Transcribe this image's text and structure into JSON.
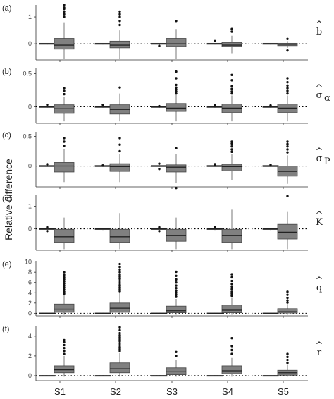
{
  "chart_data": {
    "type": "boxplot",
    "ylabel": "Relative difference",
    "categories": [
      "S1",
      "S2",
      "S3",
      "S4",
      "S5"
    ],
    "reference_line": 0,
    "panels": [
      {
        "label": "(a)",
        "symbol_base": "b",
        "symbol_sub": "",
        "ylim": [
          -0.6,
          1.5
        ],
        "ticks": [
          0,
          1
        ],
        "groups": [
          {
            "cat": "S1",
            "narrow": {
              "q1": -0.02,
              "median": 0,
              "q3": 0.02,
              "lo": -0.03,
              "hi": 0.03,
              "outliers": []
            },
            "wide": {
              "q1": -0.2,
              "median": -0.05,
              "q3": 0.2,
              "lo": -0.55,
              "hi": 0.8,
              "outliers": [
                1.0,
                1.1,
                1.2,
                1.3,
                1.35,
                1.45
              ]
            }
          },
          {
            "cat": "S2",
            "narrow": {
              "q1": -0.02,
              "median": 0,
              "q3": 0.02,
              "lo": -0.03,
              "hi": 0.03,
              "outliers": []
            },
            "wide": {
              "q1": -0.15,
              "median": -0.05,
              "q3": 0.1,
              "lo": -0.55,
              "hi": 0.5,
              "outliers": [
                0.7,
                0.85,
                1.0,
                1.1,
                1.2
              ]
            }
          },
          {
            "cat": "S3",
            "narrow": {
              "q1": -0.02,
              "median": 0,
              "q3": 0.02,
              "lo": -0.03,
              "hi": 0.03,
              "outliers": [
                -0.08
              ]
            },
            "wide": {
              "q1": -0.1,
              "median": 0.0,
              "q3": 0.2,
              "lo": -0.55,
              "hi": 0.55,
              "outliers": [
                0.85
              ]
            }
          },
          {
            "cat": "S4",
            "narrow": {
              "q1": -0.02,
              "median": 0,
              "q3": 0.02,
              "lo": -0.03,
              "hi": 0.03,
              "outliers": [
                0.1
              ]
            },
            "wide": {
              "q1": -0.1,
              "median": -0.05,
              "q3": 0.05,
              "lo": -0.35,
              "hi": 0.3,
              "outliers": [
                0.45,
                0.55
              ]
            }
          },
          {
            "cat": "S5",
            "narrow": {
              "q1": -0.02,
              "median": 0,
              "q3": 0.02,
              "lo": -0.03,
              "hi": 0.03,
              "outliers": []
            },
            "wide": {
              "q1": -0.07,
              "median": -0.02,
              "q3": 0.02,
              "lo": -0.15,
              "hi": 0.1,
              "outliers": [
                0.18,
                -0.25
              ]
            }
          }
        ]
      },
      {
        "label": "(b)",
        "symbol_base": "σ",
        "symbol_sub": "α",
        "ylim": [
          -0.25,
          0.6
        ],
        "ticks": [
          0.0,
          0.5
        ],
        "groups": [
          {
            "cat": "S1",
            "narrow": {
              "q1": -0.01,
              "median": 0,
              "q3": 0.01,
              "lo": -0.015,
              "hi": 0.015,
              "outliers": [
                0.03
              ]
            },
            "wide": {
              "q1": -0.1,
              "median": -0.03,
              "q3": 0.03,
              "lo": -0.22,
              "hi": 0.15,
              "outliers": [
                0.19,
                0.24,
                0.28
              ]
            }
          },
          {
            "cat": "S2",
            "narrow": {
              "q1": -0.01,
              "median": 0,
              "q3": 0.01,
              "lo": -0.015,
              "hi": 0.015,
              "outliers": [
                0.03
              ]
            },
            "wide": {
              "q1": -0.11,
              "median": -0.04,
              "q3": 0.03,
              "lo": -0.22,
              "hi": 0.2,
              "outliers": [
                0.29
              ]
            }
          },
          {
            "cat": "S3",
            "narrow": {
              "q1": -0.01,
              "median": 0,
              "q3": 0.01,
              "lo": -0.015,
              "hi": 0.015,
              "outliers": [
                0.01
              ]
            },
            "wide": {
              "q1": -0.07,
              "median": -0.02,
              "q3": 0.05,
              "lo": -0.22,
              "hi": 0.18,
              "outliers": [
                0.2,
                0.23,
                0.26,
                0.29,
                0.33,
                0.43,
                0.53
              ]
            }
          },
          {
            "cat": "S4",
            "narrow": {
              "q1": -0.01,
              "median": 0,
              "q3": 0.01,
              "lo": -0.015,
              "hi": 0.015,
              "outliers": [
                0.02
              ]
            },
            "wide": {
              "q1": -0.09,
              "median": -0.02,
              "q3": 0.04,
              "lo": -0.22,
              "hi": 0.17,
              "outliers": [
                0.2,
                0.23,
                0.27,
                0.31,
                0.4,
                0.48
              ]
            }
          },
          {
            "cat": "S5",
            "narrow": {
              "q1": -0.01,
              "median": 0,
              "q3": 0.01,
              "lo": -0.015,
              "hi": 0.015,
              "outliers": [
                0.02
              ]
            },
            "wide": {
              "q1": -0.09,
              "median": -0.02,
              "q3": 0.04,
              "lo": -0.22,
              "hi": 0.17,
              "outliers": [
                0.2,
                0.24,
                0.28,
                0.32,
                0.37,
                0.43
              ]
            }
          }
        ]
      },
      {
        "label": "(c)",
        "symbol_base": "σ",
        "symbol_sub": "P",
        "ylim": [
          -0.35,
          0.6
        ],
        "ticks": [
          0.0,
          0.5
        ],
        "groups": [
          {
            "cat": "S1",
            "narrow": {
              "q1": -0.01,
              "median": 0,
              "q3": 0.01,
              "lo": -0.015,
              "hi": 0.015,
              "outliers": [
                0.03
              ]
            },
            "wide": {
              "q1": -0.1,
              "median": 0.0,
              "q3": 0.06,
              "lo": -0.27,
              "hi": 0.28,
              "outliers": [
                0.34,
                0.41,
                0.47
              ]
            }
          },
          {
            "cat": "S2",
            "narrow": {
              "q1": -0.01,
              "median": 0,
              "q3": 0.01,
              "lo": -0.015,
              "hi": 0.015,
              "outliers": [
                0.01
              ]
            },
            "wide": {
              "q1": -0.09,
              "median": -0.01,
              "q3": 0.04,
              "lo": -0.27,
              "hi": 0.2,
              "outliers": [
                0.25,
                0.36,
                0.47
              ]
            }
          },
          {
            "cat": "S3",
            "narrow": {
              "q1": -0.01,
              "median": 0,
              "q3": 0.01,
              "lo": -0.015,
              "hi": 0.015,
              "outliers": [
                0.04,
                -0.05
              ]
            },
            "wide": {
              "q1": -0.1,
              "median": -0.02,
              "q3": 0.02,
              "lo": -0.28,
              "hi": 0.2,
              "outliers": [
                0.3,
                -0.37
              ]
            }
          },
          {
            "cat": "S4",
            "narrow": {
              "q1": -0.01,
              "median": 0,
              "q3": 0.01,
              "lo": -0.015,
              "hi": 0.015,
              "outliers": [
                0.02,
                0.03
              ]
            },
            "wide": {
              "q1": -0.08,
              "median": -0.01,
              "q3": 0.03,
              "lo": -0.24,
              "hi": 0.2,
              "outliers": [
                0.24,
                0.28,
                0.33,
                0.38,
                0.41
              ]
            }
          },
          {
            "cat": "S5",
            "narrow": {
              "q1": -0.01,
              "median": 0,
              "q3": 0.01,
              "lo": -0.015,
              "hi": 0.015,
              "outliers": [
                0.02
              ]
            },
            "wide": {
              "q1": -0.17,
              "median": -0.09,
              "q3": 0.0,
              "lo": -0.3,
              "hi": 0.18,
              "outliers": [
                0.23,
                0.28,
                0.33,
                0.37,
                0.41
              ]
            }
          }
        ]
      },
      {
        "label": "(d)",
        "symbol_base": "K",
        "symbol_sub": "",
        "ylim": [
          -0.95,
          1.55
        ],
        "ticks": [
          0,
          1
        ],
        "groups": [
          {
            "cat": "S1",
            "narrow": {
              "q1": -0.03,
              "median": 0,
              "q3": 0.03,
              "lo": -0.05,
              "hi": 0.05,
              "outliers": [
                0.07,
                -0.1
              ]
            },
            "wide": {
              "q1": -0.6,
              "median": -0.35,
              "q3": -0.02,
              "lo": -0.9,
              "hi": 0.5,
              "outliers": []
            }
          },
          {
            "cat": "S2",
            "narrow": {
              "q1": -0.03,
              "median": 0,
              "q3": 0.03,
              "lo": -0.05,
              "hi": 0.05,
              "outliers": []
            },
            "wide": {
              "q1": -0.6,
              "median": -0.35,
              "q3": -0.02,
              "lo": -0.9,
              "hi": 0.7,
              "outliers": []
            }
          },
          {
            "cat": "S3",
            "narrow": {
              "q1": -0.03,
              "median": 0,
              "q3": 0.03,
              "lo": -0.05,
              "hi": 0.05,
              "outliers": [
                0.07,
                -0.1
              ]
            },
            "wide": {
              "q1": -0.55,
              "median": -0.3,
              "q3": -0.02,
              "lo": -0.9,
              "hi": 0.5,
              "outliers": []
            }
          },
          {
            "cat": "S4",
            "narrow": {
              "q1": -0.03,
              "median": 0,
              "q3": 0.03,
              "lo": -0.05,
              "hi": 0.05,
              "outliers": [
                0.07
              ]
            },
            "wide": {
              "q1": -0.6,
              "median": -0.3,
              "q3": -0.02,
              "lo": -0.9,
              "hi": 0.85,
              "outliers": []
            }
          },
          {
            "cat": "S5",
            "narrow": {
              "q1": -0.03,
              "median": 0,
              "q3": 0.03,
              "lo": -0.05,
              "hi": 0.05,
              "outliers": []
            },
            "wide": {
              "q1": -0.45,
              "median": -0.15,
              "q3": 0.2,
              "lo": -0.9,
              "hi": 0.75,
              "outliers": [
                1.45
              ]
            }
          }
        ]
      },
      {
        "label": "(e)",
        "symbol_base": "q",
        "symbol_sub": "",
        "ylim": [
          -0.5,
          10.5
        ],
        "ticks": [
          0,
          2,
          4,
          6,
          8,
          10
        ],
        "groups": [
          {
            "cat": "S1",
            "narrow": {
              "q1": -0.05,
              "median": 0,
              "q3": 0.05,
              "lo": -0.1,
              "hi": 0.1,
              "outliers": []
            },
            "wide": {
              "q1": 0.2,
              "median": 0.8,
              "q3": 1.8,
              "lo": -0.3,
              "hi": 3.5,
              "outliers": [
                3.8,
                4.2,
                4.6,
                5.0,
                5.4,
                5.8,
                6.2,
                6.6,
                7.0,
                7.5,
                8.0
              ]
            }
          },
          {
            "cat": "S2",
            "narrow": {
              "q1": -0.05,
              "median": 0,
              "q3": 0.05,
              "lo": -0.1,
              "hi": 0.1,
              "outliers": []
            },
            "wide": {
              "q1": 0.2,
              "median": 1.0,
              "q3": 2.0,
              "lo": -0.3,
              "hi": 4.0,
              "outliers": [
                4.3,
                4.7,
                5.1,
                5.5,
                5.9,
                6.3,
                6.7,
                7.1,
                7.5,
                8.0,
                8.5,
                9.0,
                9.6
              ]
            }
          },
          {
            "cat": "S3",
            "narrow": {
              "q1": -0.05,
              "median": 0,
              "q3": 0.05,
              "lo": -0.1,
              "hi": 0.1,
              "outliers": []
            },
            "wide": {
              "q1": 0.1,
              "median": 0.5,
              "q3": 1.4,
              "lo": -0.3,
              "hi": 2.8,
              "outliers": [
                3.2,
                3.6,
                4.0,
                4.4,
                4.9,
                5.4,
                6.0,
                6.6,
                7.3,
                8.1
              ]
            }
          },
          {
            "cat": "S4",
            "narrow": {
              "q1": -0.05,
              "median": 0,
              "q3": 0.05,
              "lo": -0.1,
              "hi": 0.1,
              "outliers": []
            },
            "wide": {
              "q1": 0.1,
              "median": 0.6,
              "q3": 1.6,
              "lo": -0.3,
              "hi": 3.0,
              "outliers": [
                3.4,
                3.8,
                4.2,
                4.7,
                5.2,
                5.7,
                6.3,
                7.0,
                7.6
              ]
            }
          },
          {
            "cat": "S5",
            "narrow": {
              "q1": -0.05,
              "median": 0,
              "q3": 0.05,
              "lo": -0.1,
              "hi": 0.1,
              "outliers": []
            },
            "wide": {
              "q1": 0.05,
              "median": 0.3,
              "q3": 0.9,
              "lo": -0.3,
              "hi": 1.8,
              "outliers": [
                2.1,
                2.5,
                3.0,
                3.6,
                4.2
              ]
            }
          }
        ]
      },
      {
        "label": "(f)",
        "symbol_base": "r",
        "symbol_sub": "",
        "ylim": [
          -0.5,
          5.2
        ],
        "ticks": [
          0,
          2,
          4
        ],
        "groups": [
          {
            "cat": "S1",
            "narrow": {
              "q1": -0.03,
              "median": 0,
              "q3": 0.03,
              "lo": -0.05,
              "hi": 0.05,
              "outliers": []
            },
            "wide": {
              "q1": 0.3,
              "median": 0.6,
              "q3": 1.0,
              "lo": -0.1,
              "hi": 2.0,
              "outliers": [
                2.2,
                2.5,
                2.8,
                3.1,
                3.4,
                3.6
              ]
            }
          },
          {
            "cat": "S2",
            "narrow": {
              "q1": -0.03,
              "median": 0,
              "q3": 0.03,
              "lo": -0.05,
              "hi": 0.05,
              "outliers": []
            },
            "wide": {
              "q1": 0.3,
              "median": 0.7,
              "q3": 1.3,
              "lo": -0.1,
              "hi": 2.3,
              "outliers": [
                2.5,
                2.7,
                2.9,
                3.1,
                3.3,
                3.5,
                3.7,
                3.9,
                4.1,
                4.3,
                4.6,
                4.9
              ]
            }
          },
          {
            "cat": "S3",
            "narrow": {
              "q1": -0.03,
              "median": 0,
              "q3": 0.03,
              "lo": -0.05,
              "hi": 0.05,
              "outliers": []
            },
            "wide": {
              "q1": 0.1,
              "median": 0.4,
              "q3": 0.8,
              "lo": -0.1,
              "hi": 1.6,
              "outliers": [
                2.0,
                2.4
              ]
            }
          },
          {
            "cat": "S4",
            "narrow": {
              "q1": -0.03,
              "median": 0,
              "q3": 0.03,
              "lo": -0.05,
              "hi": 0.05,
              "outliers": []
            },
            "wide": {
              "q1": 0.2,
              "median": 0.5,
              "q3": 1.0,
              "lo": -0.1,
              "hi": 1.8,
              "outliers": [
                2.2,
                2.6,
                3.0,
                3.8
              ]
            }
          },
          {
            "cat": "S5",
            "narrow": {
              "q1": -0.03,
              "median": 0,
              "q3": 0.03,
              "lo": -0.05,
              "hi": 0.05,
              "outliers": []
            },
            "wide": {
              "q1": 0.05,
              "median": 0.3,
              "q3": 0.55,
              "lo": -0.1,
              "hi": 1.1,
              "outliers": [
                1.3,
                1.6,
                1.9,
                2.2
              ]
            }
          }
        ]
      }
    ]
  }
}
